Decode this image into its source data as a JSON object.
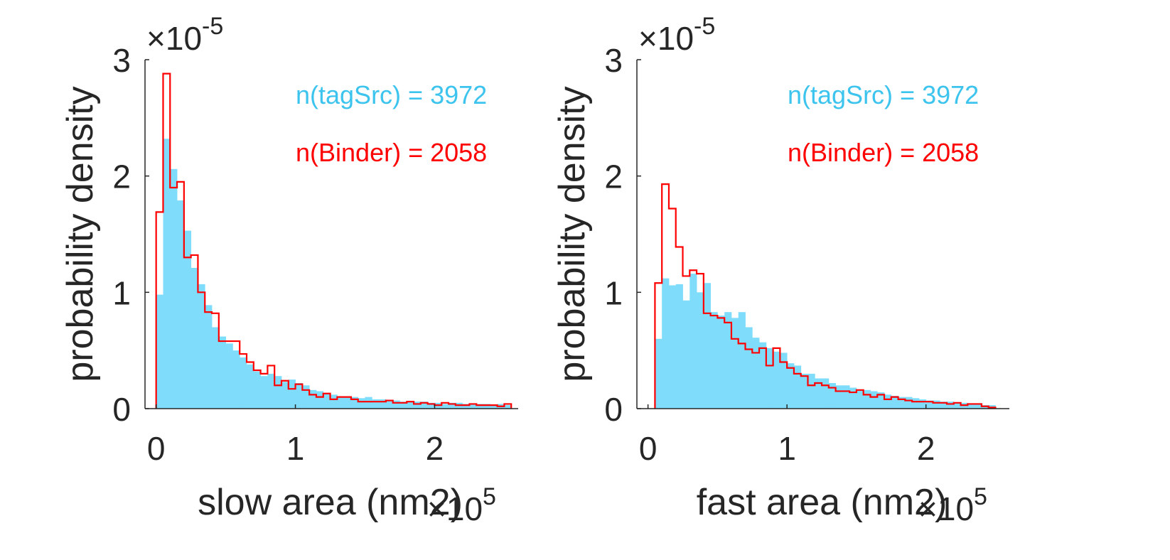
{
  "chart_data": [
    {
      "type": "bar",
      "xlabel": "slow area (nm2)",
      "ylabel": "probability density",
      "x_exponent_label": "×10",
      "x_exponent_sup": "5",
      "y_exponent_label": "×10",
      "y_exponent_sup": "-5",
      "xlim": [
        -0.08,
        2.6
      ],
      "ylim": [
        0,
        3
      ],
      "x_ticks": [
        0,
        1,
        2
      ],
      "x_tick_labels": [
        "0",
        "1",
        "2"
      ],
      "y_ticks": [
        0,
        1,
        2,
        3
      ],
      "y_tick_labels": [
        "0",
        "1",
        "2",
        "3"
      ],
      "bin_start": 0,
      "bin_width": 0.05,
      "annotations": [
        {
          "text": "n(tagSrc) = 3972",
          "color": "#3cc4ee"
        },
        {
          "text": "n(Binder) = 2058",
          "color": "#ff0000"
        }
      ],
      "series": [
        {
          "name": "tagSrc",
          "style": "bar",
          "color": "#80dcfb",
          "values": [
            0.98,
            2.32,
            2.06,
            1.79,
            1.53,
            1.21,
            1.07,
            0.89,
            0.7,
            0.62,
            0.56,
            0.5,
            0.44,
            0.38,
            0.32,
            0.28,
            0.3,
            0.28,
            0.23,
            0.25,
            0.22,
            0.2,
            0.16,
            0.15,
            0.13,
            0.12,
            0.1,
            0.1,
            0.1,
            0.09,
            0.1,
            0.08,
            0.08,
            0.07,
            0.07,
            0.06,
            0.06,
            0.06,
            0.06,
            0.05,
            0.05,
            0.04,
            0.05,
            0.05,
            0.04,
            0.04,
            0.04,
            0.04,
            0.03,
            0.04,
            0.03
          ]
        },
        {
          "name": "Binder",
          "style": "stairs",
          "color": "#ff0000",
          "values": [
            1.69,
            2.88,
            1.9,
            1.95,
            1.3,
            1.32,
            1.0,
            0.83,
            0.82,
            0.58,
            0.58,
            0.58,
            0.47,
            0.4,
            0.33,
            0.3,
            0.37,
            0.2,
            0.24,
            0.17,
            0.21,
            0.16,
            0.12,
            0.1,
            0.13,
            0.08,
            0.1,
            0.1,
            0.08,
            0.06,
            0.06,
            0.06,
            0.06,
            0.07,
            0.05,
            0.05,
            0.06,
            0.04,
            0.05,
            0.04,
            0.03,
            0.05,
            0.04,
            0.03,
            0.03,
            0.04,
            0.03,
            0.03,
            0.03,
            0.02,
            0.04
          ]
        }
      ]
    },
    {
      "type": "bar",
      "xlabel": "fast area (nm2)",
      "ylabel": "probability density",
      "x_exponent_label": "×10",
      "x_exponent_sup": "5",
      "y_exponent_label": "×10",
      "y_exponent_sup": "-5",
      "xlim": [
        -0.08,
        2.6
      ],
      "ylim": [
        0,
        3
      ],
      "x_ticks": [
        0,
        1,
        2
      ],
      "x_tick_labels": [
        "0",
        "1",
        "2"
      ],
      "y_ticks": [
        0,
        1,
        2,
        3
      ],
      "y_tick_labels": [
        "0",
        "1",
        "2",
        "3"
      ],
      "bin_start": 0.05,
      "bin_width": 0.05,
      "annotations": [
        {
          "text": "n(tagSrc) = 3972",
          "color": "#3cc4ee"
        },
        {
          "text": "n(Binder) = 2058",
          "color": "#ff0000"
        }
      ],
      "series": [
        {
          "name": "tagSrc",
          "style": "bar",
          "color": "#80dcfb",
          "values": [
            0.6,
            1.12,
            1.06,
            1.07,
            0.93,
            1.16,
            1.0,
            1.08,
            0.83,
            0.8,
            0.83,
            0.78,
            0.83,
            0.7,
            0.61,
            0.57,
            0.52,
            0.49,
            0.48,
            0.39,
            0.37,
            0.3,
            0.3,
            0.26,
            0.26,
            0.22,
            0.2,
            0.2,
            0.18,
            0.16,
            0.16,
            0.15,
            0.14,
            0.12,
            0.11,
            0.1,
            0.1,
            0.09,
            0.08,
            0.07,
            0.07,
            0.06,
            0.06,
            0.05,
            0.05,
            0.04,
            0.04,
            0.03,
            0.03
          ]
        },
        {
          "name": "Binder",
          "style": "stairs",
          "color": "#ff0000",
          "values": [
            1.08,
            1.93,
            1.72,
            1.39,
            1.14,
            1.19,
            1.16,
            0.82,
            0.8,
            0.78,
            0.74,
            0.6,
            0.56,
            0.51,
            0.48,
            0.52,
            0.37,
            0.52,
            0.4,
            0.35,
            0.3,
            0.28,
            0.2,
            0.22,
            0.2,
            0.18,
            0.15,
            0.15,
            0.14,
            0.16,
            0.12,
            0.1,
            0.12,
            0.08,
            0.1,
            0.08,
            0.07,
            0.06,
            0.06,
            0.06,
            0.05,
            0.05,
            0.04,
            0.05,
            0.03,
            0.04,
            0.04,
            0.02,
            0.01
          ]
        }
      ]
    }
  ]
}
